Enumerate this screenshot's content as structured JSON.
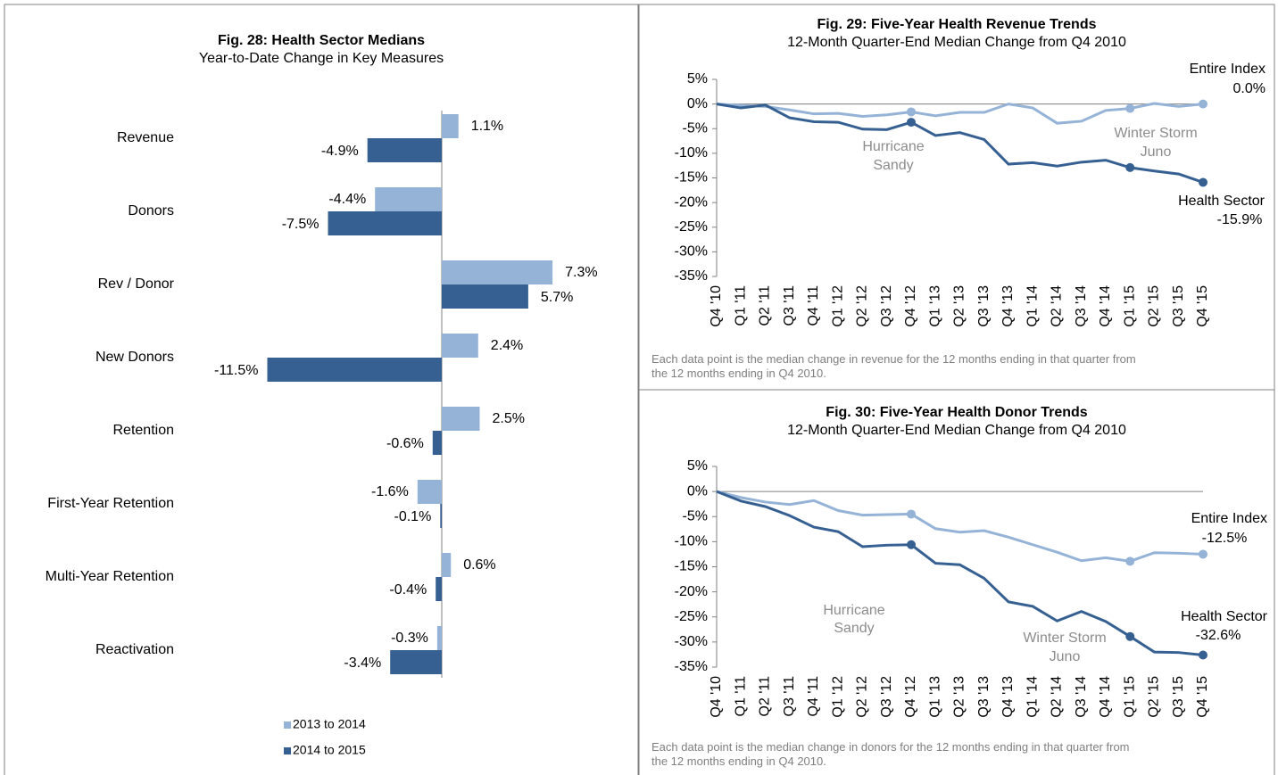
{
  "chart_data": [
    {
      "type": "hbar",
      "title": "Fig. 28: Health Sector Medians",
      "subtitle": "Year-to-Date Change in Key Measures",
      "categories": [
        "Revenue",
        "Donors",
        "Rev / Donor",
        "New Donors",
        "Retention",
        "First-Year Retention",
        "Multi-Year Retention",
        "Reactivation"
      ],
      "series": [
        {
          "name": "2013 to 2014",
          "color": "#95b3d7",
          "values": [
            1.1,
            -4.4,
            7.3,
            2.4,
            2.5,
            -1.6,
            0.6,
            -0.3
          ],
          "value_labels": [
            "1.1%",
            "-4.4%",
            "7.3%",
            "2.4%",
            "2.5%",
            "-1.6%",
            "0.6%",
            "-0.3%"
          ]
        },
        {
          "name": "2014 to 2015",
          "color": "#366092",
          "values": [
            -4.9,
            -7.5,
            5.7,
            -11.5,
            -0.6,
            -0.1,
            -0.4,
            -3.4
          ],
          "value_labels": [
            "-4.9%",
            "-7.5%",
            "5.7%",
            "-11.5%",
            "-0.6%",
            "-0.1%",
            "-0.4%",
            "-3.4%"
          ]
        }
      ],
      "legend": "bottom"
    },
    {
      "type": "line",
      "title": "Fig. 29: Five-Year Health Revenue Trends",
      "subtitle": "12-Month Quarter-End Median Change from Q4 2010",
      "categories": [
        "Q4 '10",
        "Q1 '11",
        "Q2 '11",
        "Q3 '11",
        "Q4 '11",
        "Q1 '12",
        "Q2 '12",
        "Q3 '12",
        "Q4 '12",
        "Q1 '13",
        "Q2 '13",
        "Q3 '13",
        "Q4 '13",
        "Q1 '14",
        "Q2 '14",
        "Q3 '14",
        "Q4 '14",
        "Q1 '15",
        "Q2 '15",
        "Q3 '15",
        "Q4 '15"
      ],
      "series": [
        {
          "name": "Entire Index",
          "color": "#95b3d7",
          "values": [
            0,
            -0.3,
            -0.5,
            -1.2,
            -2.0,
            -1.9,
            -2.5,
            -2.2,
            -1.6,
            -2.4,
            -1.7,
            -1.7,
            0,
            -0.8,
            -3.9,
            -3.5,
            -1.3,
            -0.9,
            0.1,
            -0.5,
            0.0
          ]
        },
        {
          "name": "Health Sector",
          "color": "#366092",
          "values": [
            0,
            -0.8,
            -0.2,
            -2.8,
            -3.6,
            -3.7,
            -5.1,
            -5.2,
            -3.7,
            -6.4,
            -5.8,
            -7.2,
            -12.2,
            -11.9,
            -12.6,
            -11.8,
            -11.4,
            -12.9,
            -13.6,
            -14.2,
            -15.9
          ]
        }
      ],
      "marker_indices": [
        8,
        17,
        20
      ],
      "ylim": [
        -35,
        5
      ],
      "yticks": [
        {
          "value": 5,
          "label": "5%"
        },
        {
          "value": 0,
          "label": "0%"
        },
        {
          "value": -5,
          "label": "-5%"
        },
        {
          "value": -10,
          "label": "-10%"
        },
        {
          "value": -15,
          "label": "-15%"
        },
        {
          "value": -20,
          "label": "-20%"
        },
        {
          "value": -25,
          "label": "-25%"
        },
        {
          "value": -30,
          "label": "-30%"
        },
        {
          "value": -35,
          "label": "-35%"
        }
      ],
      "annotations": [
        "Entire Index",
        "0.0%",
        "Hurricane",
        "Sandy",
        "Winter Storm",
        "Juno",
        "Health Sector",
        "-15.9%"
      ],
      "note": "Each data point is the median change in revenue for the 12 months ending in that quarter from the 12 months ending in Q4 2010."
    },
    {
      "type": "line",
      "title": "Fig. 30: Five-Year Health Donor Trends",
      "subtitle": "12-Month Quarter-End Median Change from Q4 2010",
      "categories": [
        "Q4 '10",
        "Q1 '11",
        "Q2 '11",
        "Q3 '11",
        "Q4 '11",
        "Q1 '12",
        "Q2 '12",
        "Q3 '12",
        "Q4 '12",
        "Q1 '13",
        "Q2 '13",
        "Q3 '13",
        "Q4 '13",
        "Q1 '14",
        "Q2 '14",
        "Q3 '14",
        "Q4 '14",
        "Q1 '15",
        "Q2 '15",
        "Q3 '15",
        "Q4 '15"
      ],
      "series": [
        {
          "name": "Entire Index",
          "color": "#95b3d7",
          "values": [
            0,
            -1.2,
            -2.1,
            -2.6,
            -1.8,
            -3.8,
            -4.7,
            -4.6,
            -4.5,
            -7.4,
            -8.1,
            -7.8,
            -9.1,
            -10.6,
            -12.1,
            -13.8,
            -13.2,
            -13.9,
            -12.2,
            -12.3,
            -12.5
          ]
        },
        {
          "name": "Health Sector",
          "color": "#366092",
          "values": [
            0,
            -1.9,
            -3.0,
            -4.8,
            -7.1,
            -8.0,
            -11.0,
            -10.7,
            -10.6,
            -14.3,
            -14.6,
            -17.3,
            -22.0,
            -22.9,
            -25.8,
            -23.9,
            -25.9,
            -28.9,
            -32.0,
            -32.1,
            -32.6
          ]
        }
      ],
      "marker_indices": [
        8,
        17,
        20
      ],
      "ylim": [
        -35,
        5
      ],
      "yticks": [
        {
          "value": 5,
          "label": "5%"
        },
        {
          "value": 0,
          "label": "0%"
        },
        {
          "value": -5,
          "label": "-5%"
        },
        {
          "value": -10,
          "label": "-10%"
        },
        {
          "value": -15,
          "label": "-15%"
        },
        {
          "value": -20,
          "label": "-20%"
        },
        {
          "value": -25,
          "label": "-25%"
        },
        {
          "value": -30,
          "label": "-30%"
        },
        {
          "value": -35,
          "label": "-35%"
        }
      ],
      "annotations": [
        "Entire Index",
        "-12.5%",
        "Hurricane",
        "Sandy",
        "Winter Storm",
        "Juno",
        "Health Sector",
        "-32.6%"
      ],
      "note": "Each data point is the median change in donors for the 12 months ending in that quarter from the 12 months ending in Q4 2010."
    }
  ]
}
